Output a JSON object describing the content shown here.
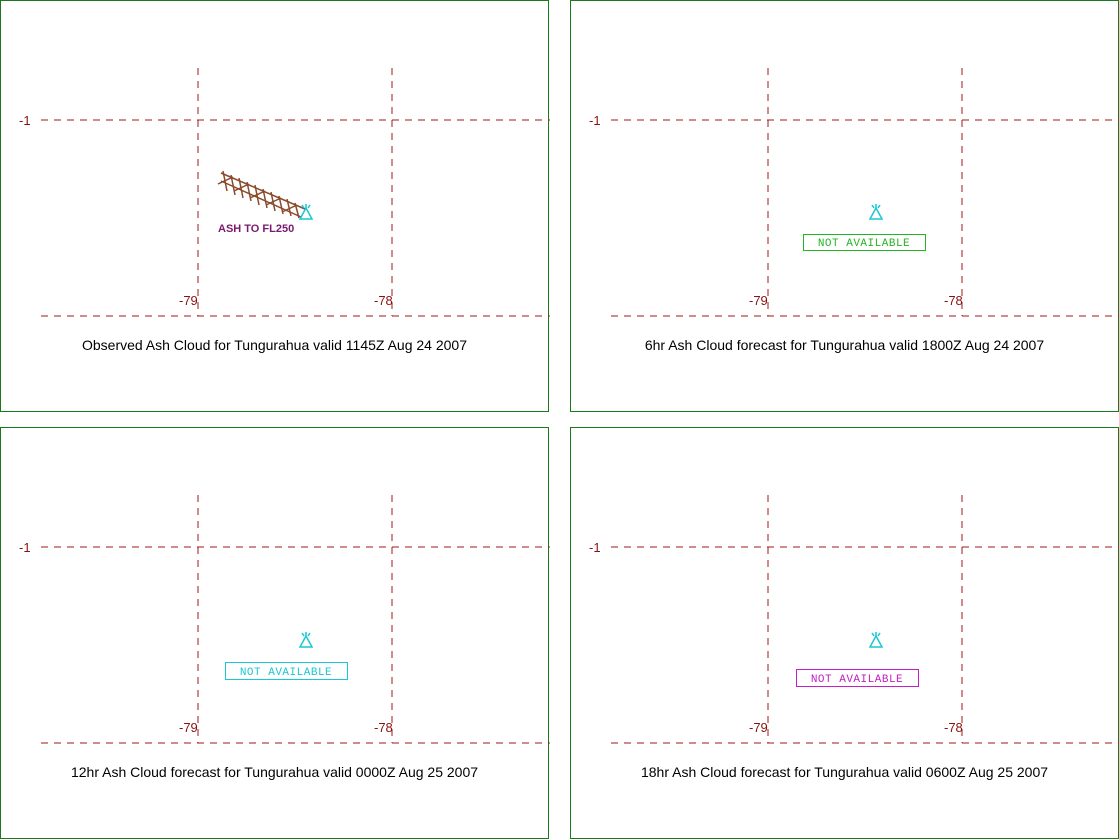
{
  "colors": {
    "panel_border": "#1a7a1a",
    "grid": "#a01818",
    "volcano": "#19c8d2",
    "ash_cloud": "#8b4a2b",
    "ash_label": "#7a1a6e"
  },
  "grid_labels": {
    "lat": "-1",
    "lon_west": "-79",
    "lon_east": "-78"
  },
  "panels": [
    {
      "caption": "Observed Ash Cloud for Tungurahua valid 1145Z Aug 24 2007",
      "ash_label": "ASH TO FL250",
      "status": "",
      "status_color": ""
    },
    {
      "caption": "6hr Ash Cloud forecast for Tungurahua valid 1800Z Aug 24 2007",
      "ash_label": "",
      "status": "NOT AVAILABLE",
      "status_color": "#22b522"
    },
    {
      "caption": "12hr Ash Cloud forecast for Tungurahua valid 0000Z Aug 25 2007",
      "ash_label": "",
      "status": "NOT AVAILABLE",
      "status_color": "#19c8d2"
    },
    {
      "caption": "18hr Ash Cloud forecast for Tungurahua valid 0600Z Aug 25 2007",
      "ash_label": "",
      "status": "NOT AVAILABLE",
      "status_color": "#c21ec2"
    }
  ]
}
